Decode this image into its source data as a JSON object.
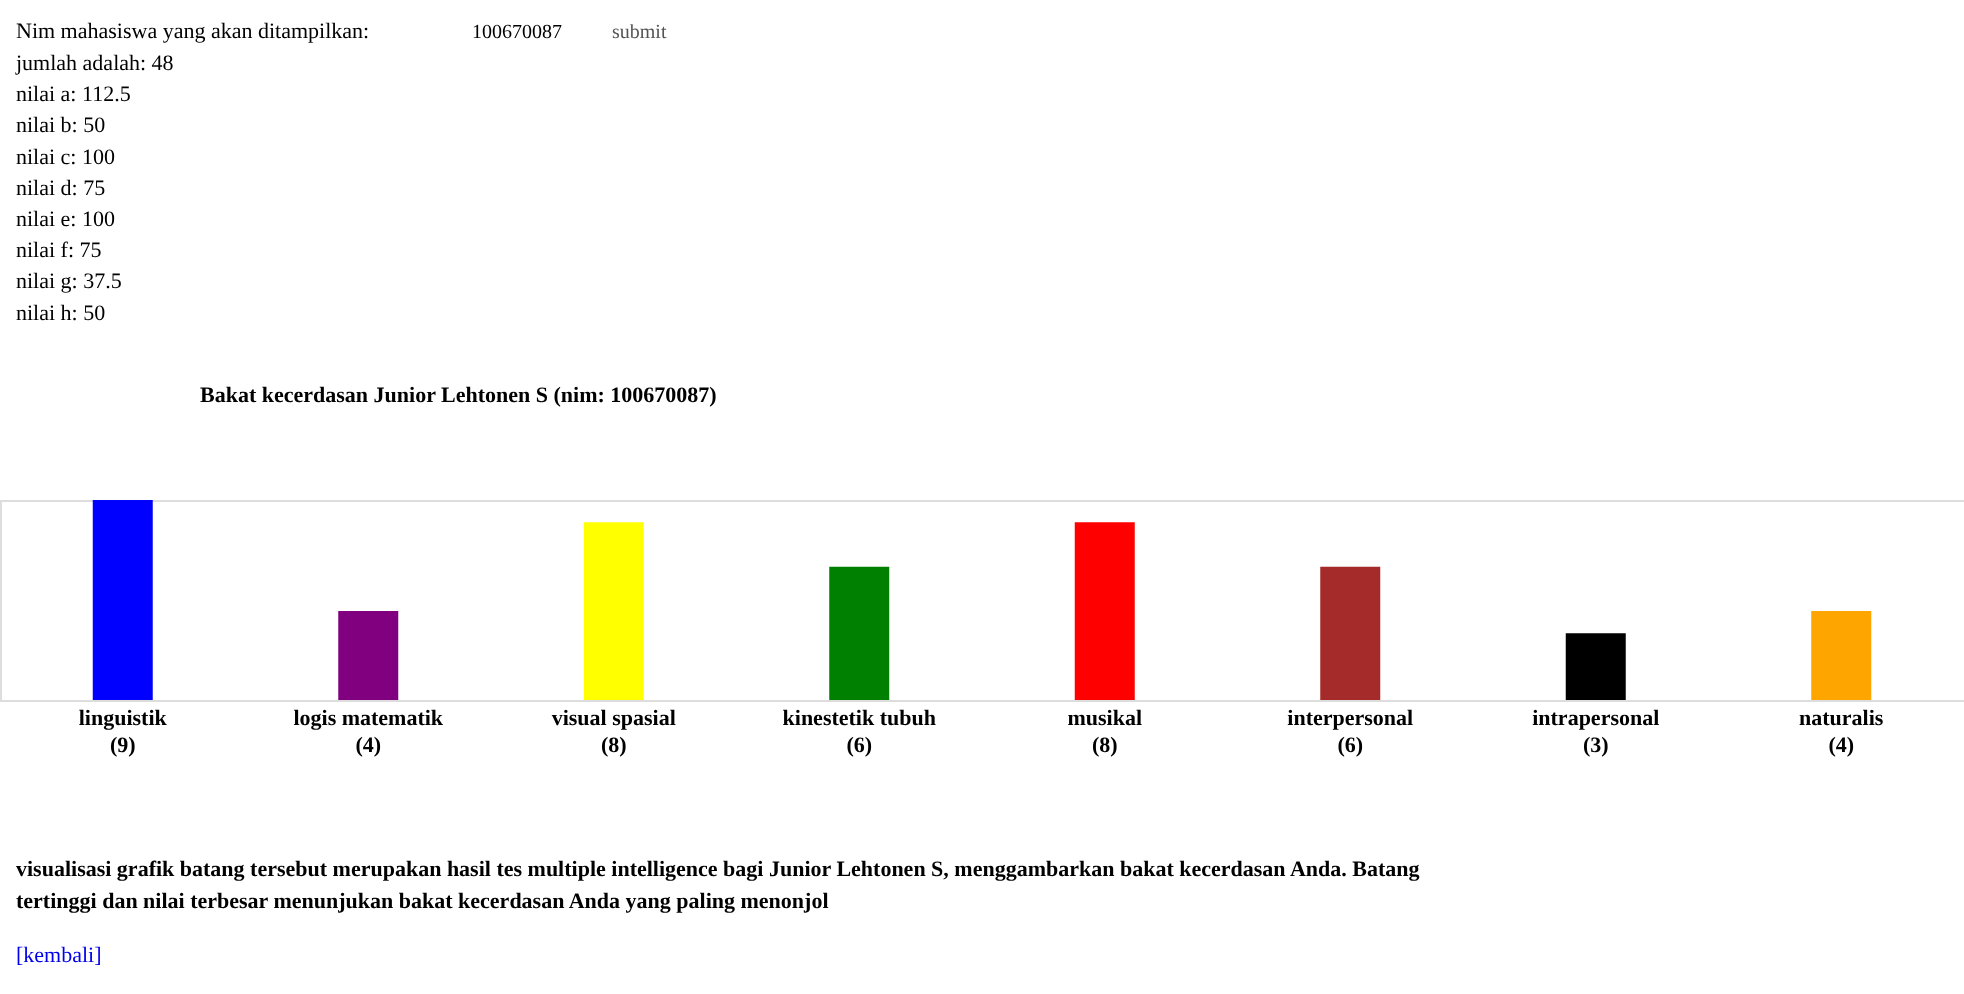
{
  "chart_data": {
    "type": "bar",
    "title": "Bakat kecerdasan Junior Lehtonen S (nim: 100670087)",
    "categories": [
      "linguistik",
      "logis matematik",
      "visual spasial",
      "kinestetik tubuh",
      "musikal",
      "interpersonal",
      "intrapersonal",
      "naturalis"
    ],
    "values": [
      9,
      4,
      8,
      6,
      8,
      6,
      3,
      4
    ],
    "colors": [
      "#0000ff",
      "#800080",
      "#ffff00",
      "#008000",
      "#ff0000",
      "#a52a2a",
      "#000000",
      "#ffa500"
    ],
    "value_labels": [
      "(9)",
      "(4)",
      "(8)",
      "(6)",
      "(8)",
      "(6)",
      "(3)",
      "(4)"
    ],
    "annotations": [
      "Nim mahasiswa yang akan ditampilkan:",
      "100670087",
      "submit",
      "jumlah adalah: 48",
      "nilai a: 112.5",
      "nilai b: 50",
      "nilai c: 100",
      "nilai d: 75",
      "nilai e: 100",
      "nilai f: 75",
      "nilai g: 37.5",
      "nilai h: 50",
      "visualisasi grafik batang tersebut merupakan hasil tes multiple intelligence bagi Junior Lehtonen S, menggambarkan bakat kecerdasan Anda. Batang tertinggi dan nilai terbesar menunjukan bakat kecerdasan Anda yang paling menonjol",
      "[kembali]"
    ]
  }
}
